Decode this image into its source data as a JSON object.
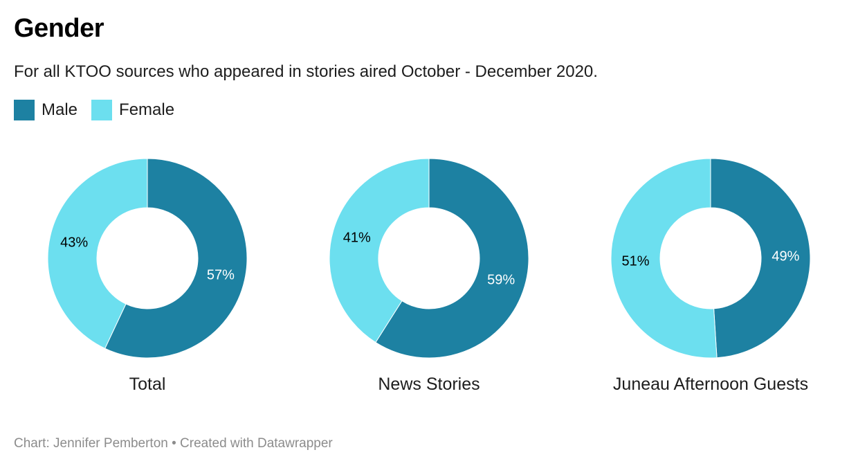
{
  "chart_data": {
    "type": "pie",
    "variant": "donut",
    "title": "Gender",
    "subtitle": "For all KTOO sources who appeared in stories aired October - December 2020.",
    "legend": {
      "placement": "top-left",
      "entries": [
        {
          "name": "Male",
          "color": "#1d81a2"
        },
        {
          "name": "Female",
          "color": "#6cdfef"
        }
      ]
    },
    "series_order": [
      "Male",
      "Female"
    ],
    "charts": [
      {
        "title": "Total",
        "slices": [
          {
            "name": "Male",
            "value": 57,
            "label": "57%"
          },
          {
            "name": "Female",
            "value": 43,
            "label": "43%"
          }
        ]
      },
      {
        "title": "News Stories",
        "slices": [
          {
            "name": "Male",
            "value": 59,
            "label": "59%"
          },
          {
            "name": "Female",
            "value": 41,
            "label": "41%"
          }
        ]
      },
      {
        "title": "Juneau Afternoon Guests",
        "slices": [
          {
            "name": "Male",
            "value": 49,
            "label": "49%"
          },
          {
            "name": "Female",
            "value": 51,
            "label": "51%"
          }
        ]
      }
    ],
    "label_colors": {
      "Male": "#ffffff",
      "Female": "#000000"
    }
  },
  "footer": {
    "credit": "Chart: Jennifer Pemberton • Created with Datawrapper"
  }
}
